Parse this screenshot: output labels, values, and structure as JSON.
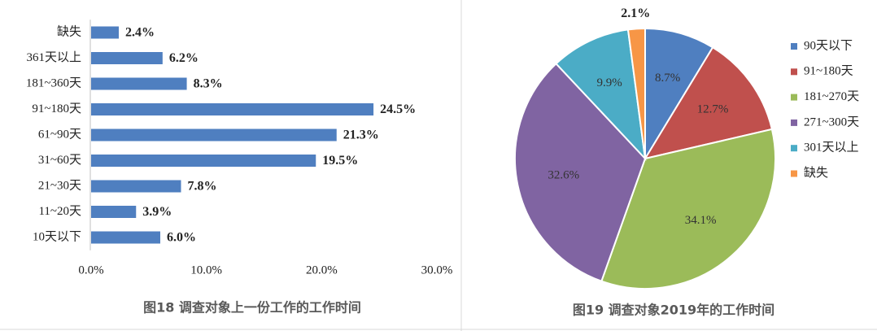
{
  "chart_data": [
    {
      "type": "hbar",
      "title": "图18 调查对象上一份工作的工作时间",
      "categories": [
        "缺失",
        "361天以上",
        "181~360天",
        "91~180天",
        "61~90天",
        "31~60天",
        "21~30天",
        "11~20天",
        "10天以下"
      ],
      "values": [
        2.4,
        6.2,
        8.3,
        24.5,
        21.3,
        19.5,
        7.8,
        3.9,
        6.0
      ],
      "value_labels": [
        "2.4%",
        "6.2%",
        "8.3%",
        "24.5%",
        "21.3%",
        "19.5%",
        "7.8%",
        "3.9%",
        "6.0%"
      ],
      "color": "#4f7fc0",
      "xlim": [
        0,
        30
      ],
      "xticks": [
        {
          "value": 0,
          "label": "0.0%"
        },
        {
          "value": 10,
          "label": "10.0%"
        },
        {
          "value": 20,
          "label": "20.0%"
        },
        {
          "value": 30,
          "label": "30.0%"
        }
      ]
    },
    {
      "type": "pie",
      "title": "图19 调查对象2019年的工作时间",
      "categories": [
        "90天以下",
        "91~180天",
        "181~270天",
        "271~300天",
        "301天以上",
        "缺失"
      ],
      "values": [
        8.7,
        12.7,
        34.1,
        32.6,
        9.9,
        2.1
      ],
      "value_labels": [
        "8.7%",
        "12.7%",
        "34.1%",
        "32.6%",
        "9.9%",
        "2.1%"
      ],
      "colors": [
        "#4f7fc0",
        "#c0504d",
        "#9bbb59",
        "#8064a2",
        "#4bacc6",
        "#f79646"
      ],
      "legend": "right"
    }
  ]
}
